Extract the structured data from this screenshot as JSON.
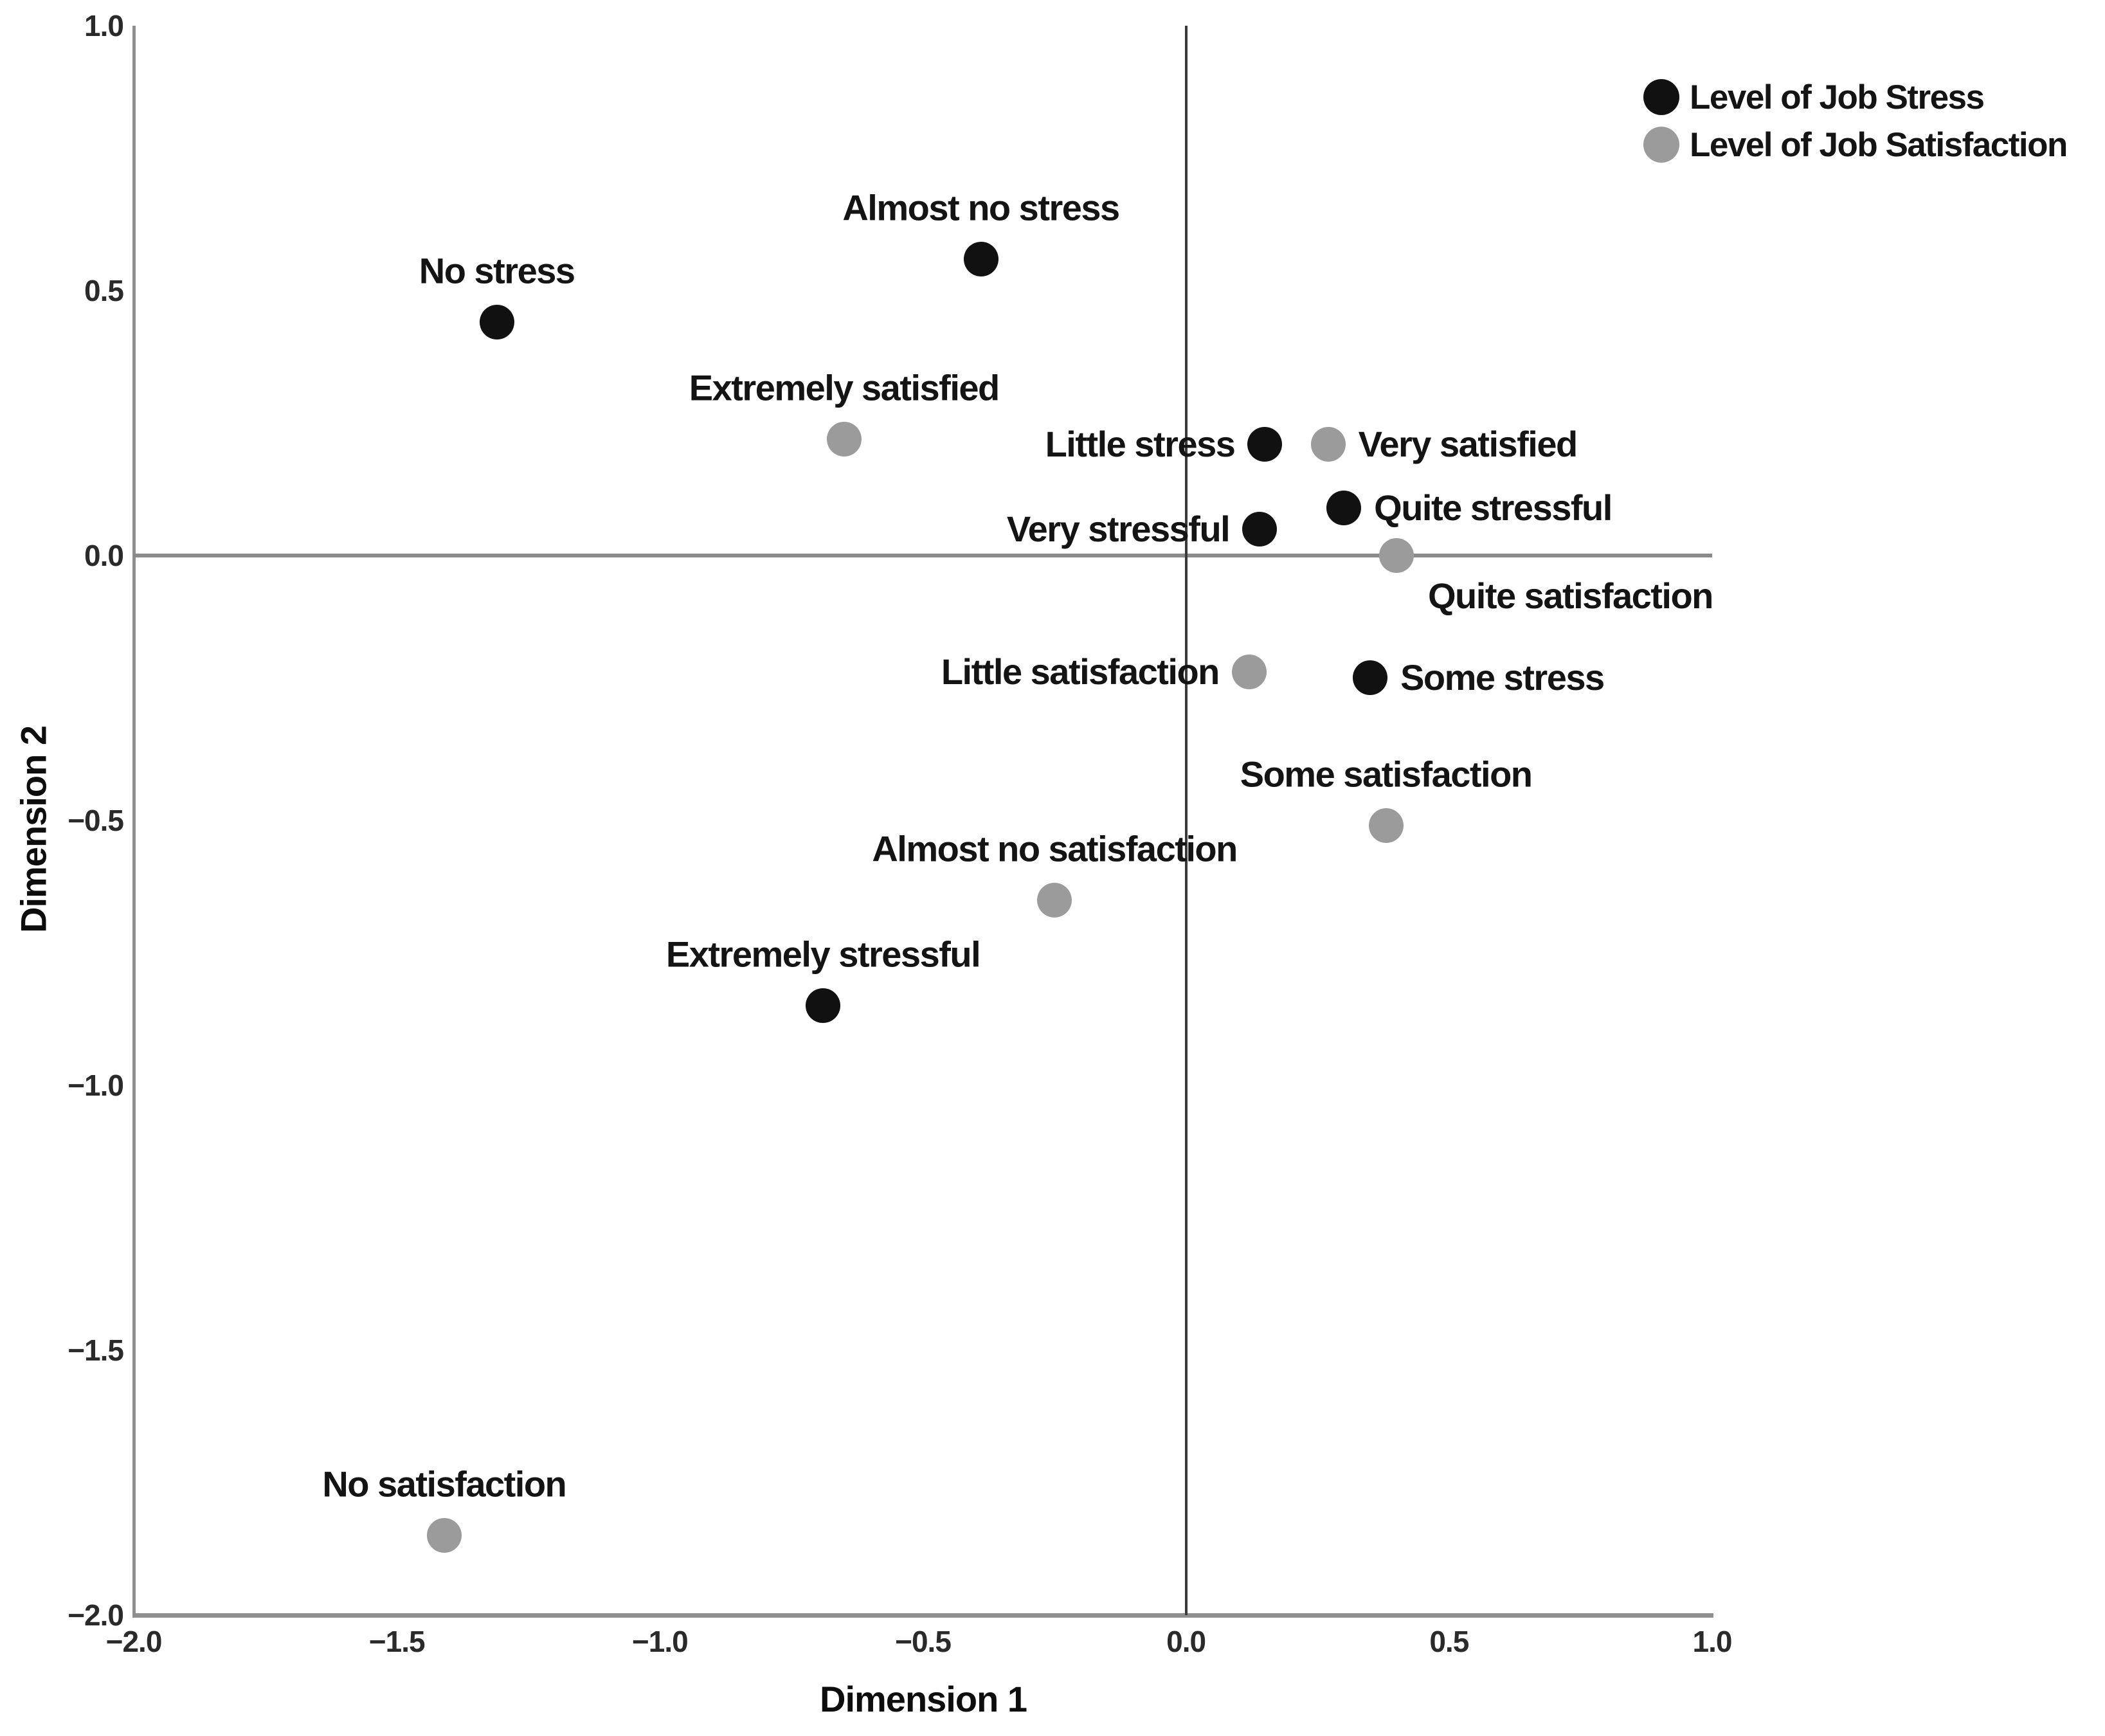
{
  "chart_data": {
    "type": "scatter",
    "title": "",
    "xlabel": "Dimension 1",
    "ylabel": "Dimension 2",
    "xlim": [
      -2.0,
      1.0
    ],
    "ylim": [
      -2.0,
      1.0
    ],
    "grid": false,
    "legend_position": "top-right",
    "x_ticks": [
      {
        "label": "−2.0",
        "value": -2.0
      },
      {
        "label": "−1.5",
        "value": -1.5
      },
      {
        "label": "−1.0",
        "value": -1.0
      },
      {
        "label": "−0.5",
        "value": -0.5
      },
      {
        "label": "0.0",
        "value": 0.0
      },
      {
        "label": "0.5",
        "value": 0.5
      },
      {
        "label": "1.0",
        "value": 1.0
      }
    ],
    "y_ticks": [
      {
        "label": "1.0",
        "value": 1.0
      },
      {
        "label": "0.5",
        "value": 0.5
      },
      {
        "label": "0.0",
        "value": 0.0
      },
      {
        "label": "−0.5",
        "value": -0.5
      },
      {
        "label": "−1.0",
        "value": -1.0
      },
      {
        "label": "−1.5",
        "value": -1.5
      },
      {
        "label": "−2.0",
        "value": -2.0
      }
    ],
    "series": [
      {
        "name": "Level of Job Stress",
        "color": "#111111",
        "points": [
          {
            "label": "No stress",
            "x": -1.31,
            "y": 0.44,
            "anchor": "above"
          },
          {
            "label": "Almost no stress",
            "x": -0.39,
            "y": 0.56,
            "anchor": "above"
          },
          {
            "label": "Little stress",
            "x": 0.15,
            "y": 0.21,
            "anchor": "left"
          },
          {
            "label": "Very stressful",
            "x": 0.14,
            "y": 0.05,
            "anchor": "left"
          },
          {
            "label": "Quite stressful",
            "x": 0.3,
            "y": 0.09,
            "anchor": "right"
          },
          {
            "label": "Some stress",
            "x": 0.35,
            "y": -0.23,
            "anchor": "right"
          },
          {
            "label": "Extremely stressful",
            "x": -0.69,
            "y": -0.85,
            "anchor": "above"
          }
        ]
      },
      {
        "name": "Level of Job Satisfaction",
        "color": "#9b9b9b",
        "points": [
          {
            "label": "Extremely satisfied",
            "x": -0.65,
            "y": 0.22,
            "anchor": "above"
          },
          {
            "label": "Very satisfied",
            "x": 0.27,
            "y": 0.21,
            "anchor": "right"
          },
          {
            "label": "Quite satisfaction",
            "x": 0.4,
            "y": 0.0,
            "anchor": "below-right"
          },
          {
            "label": "Little satisfaction",
            "x": 0.12,
            "y": -0.22,
            "anchor": "left"
          },
          {
            "label": "Some satisfaction",
            "x": 0.38,
            "y": -0.51,
            "anchor": "above"
          },
          {
            "label": "Almost no satisfaction",
            "x": -0.25,
            "y": -0.65,
            "anchor": "above"
          },
          {
            "label": "No satisfaction",
            "x": -1.41,
            "y": -1.85,
            "anchor": "above"
          }
        ]
      }
    ],
    "colors": {
      "axis_line": "#8f8f8f",
      "zero_vertical_line": "#3a3a3a",
      "zero_horizontal_line": "#8a8a8a",
      "label_text": "#141414",
      "tick_text": "#2a2a2a"
    }
  }
}
